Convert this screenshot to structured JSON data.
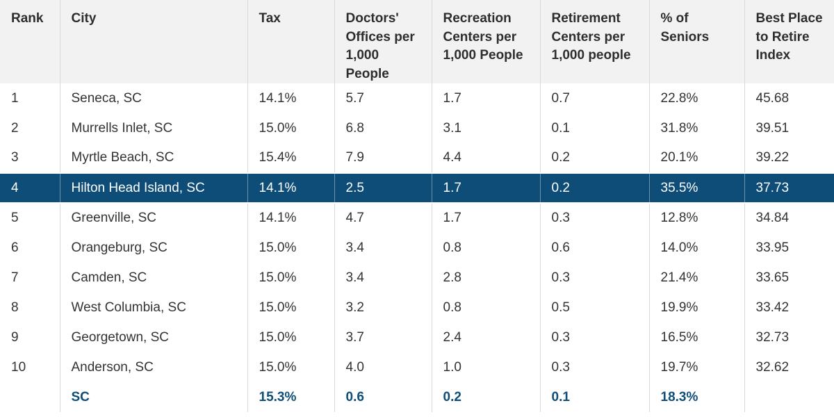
{
  "table": {
    "headers": [
      "Rank",
      "City",
      "Tax",
      "Doctors' Offices per 1,000 People",
      "Recreation Centers per 1,000 People",
      "Retirement Centers per 1,000 people",
      "% of Seniors",
      "Best Place to Retire Index"
    ],
    "rows": [
      [
        "1",
        "Seneca, SC",
        "14.1%",
        "5.7",
        "1.7",
        "0.7",
        "22.8%",
        "45.68"
      ],
      [
        "2",
        "Murrells Inlet, SC",
        "15.0%",
        "6.8",
        "3.1",
        "0.1",
        "31.8%",
        "39.51"
      ],
      [
        "3",
        "Myrtle Beach, SC",
        "15.4%",
        "7.9",
        "4.4",
        "0.2",
        "20.1%",
        "39.22"
      ],
      [
        "4",
        "Hilton Head Island, SC",
        "14.1%",
        "2.5",
        "1.7",
        "0.2",
        "35.5%",
        "37.73"
      ],
      [
        "5",
        "Greenville, SC",
        "14.1%",
        "4.7",
        "1.7",
        "0.3",
        "12.8%",
        "34.84"
      ],
      [
        "6",
        "Orangeburg, SC",
        "15.0%",
        "3.4",
        "0.8",
        "0.6",
        "14.0%",
        "33.95"
      ],
      [
        "7",
        "Camden, SC",
        "15.0%",
        "3.4",
        "2.8",
        "0.3",
        "21.4%",
        "33.65"
      ],
      [
        "8",
        "West Columbia, SC",
        "15.0%",
        "3.2",
        "0.8",
        "0.5",
        "19.9%",
        "33.42"
      ],
      [
        "9",
        "Georgetown, SC",
        "15.0%",
        "3.7",
        "2.4",
        "0.3",
        "16.5%",
        "32.73"
      ],
      [
        "10",
        "Anderson, SC",
        "15.0%",
        "4.0",
        "1.0",
        "0.3",
        "19.7%",
        "32.62"
      ]
    ],
    "highlighted_rank": "4",
    "total": [
      "",
      "SC",
      "15.3%",
      "0.6",
      "0.2",
      "0.1",
      "18.3%",
      ""
    ]
  },
  "colors": {
    "header_bg": "#f2f2f2",
    "highlight_bg": "#0d4d78",
    "highlight_text": "#ffffff",
    "total_text": "#0d4d78",
    "body_text": "#333333"
  }
}
